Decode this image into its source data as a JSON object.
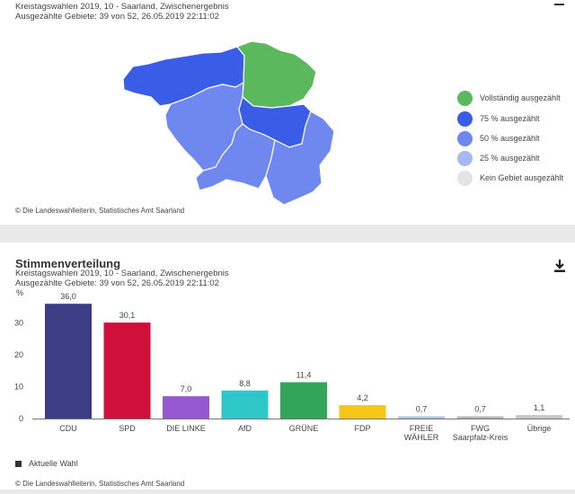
{
  "map_panel": {
    "subtitle_line1": "Kreistagswahlen 2019, 10 - Saarland, Zwischenergebnis",
    "subtitle_line2": "Ausgezählte Gebiete: 39 von 52, 26.05.2019 22:11:02",
    "credit": "© Die Landeswahlleiterin, Statistisches Amt Saarland",
    "legend": [
      {
        "label": "Vollständig ausgezählt",
        "color": "#5cb85c"
      },
      {
        "label": "75 % ausgezählt",
        "color": "#3a5de8"
      },
      {
        "label": "50 % ausgezählt",
        "color": "#6f88f0"
      },
      {
        "label": "25 % ausgezählt",
        "color": "#a8b8f6"
      },
      {
        "label": "Kein Gebiet ausgezählt",
        "color": "#e4e4e4"
      }
    ]
  },
  "chart_panel": {
    "title": "Stimmenverteilung",
    "subtitle_line1": "Kreistagswahlen 2019, 10 - Saarland, Zwischenergebnis",
    "subtitle_line2": "Ausgezählte Gebiete: 39 von 52, 26.05.2019 22:11:02",
    "credit": "© Die Landeswahlleiterin, Statistisches Amt Saarland",
    "download_icon": "download-icon",
    "series_legend": "Aktuelle Wahl"
  },
  "chart_data": {
    "type": "bar",
    "ylabel": "%",
    "ylim": [
      0,
      38
    ],
    "yticks": [
      "0",
      "10",
      "20",
      "30"
    ],
    "categories": [
      "CDU",
      "SPD",
      "DIE LINKE",
      "AfD",
      "GRÜNE",
      "FDP",
      "FREIE\nWÄHLER",
      "FWG\nSaarpfalz-Kreis",
      "Übrige"
    ],
    "values": [
      36.0,
      30.1,
      7.0,
      8.8,
      11.4,
      4.2,
      0.7,
      0.7,
      1.1
    ],
    "labels": [
      "36,0",
      "30,1",
      "7,0",
      "8,8",
      "11,4",
      "4,2",
      "0,7",
      "0,7",
      "1,1"
    ],
    "colors": [
      "#3d3d85",
      "#d0103a",
      "#9558d0",
      "#2ec7c7",
      "#32a55a",
      "#f5c518",
      "#a7c4ea",
      "#b5b5b5",
      "#c8c8c8"
    ],
    "legend": [
      "Aktuelle Wahl"
    ],
    "grid": false
  }
}
